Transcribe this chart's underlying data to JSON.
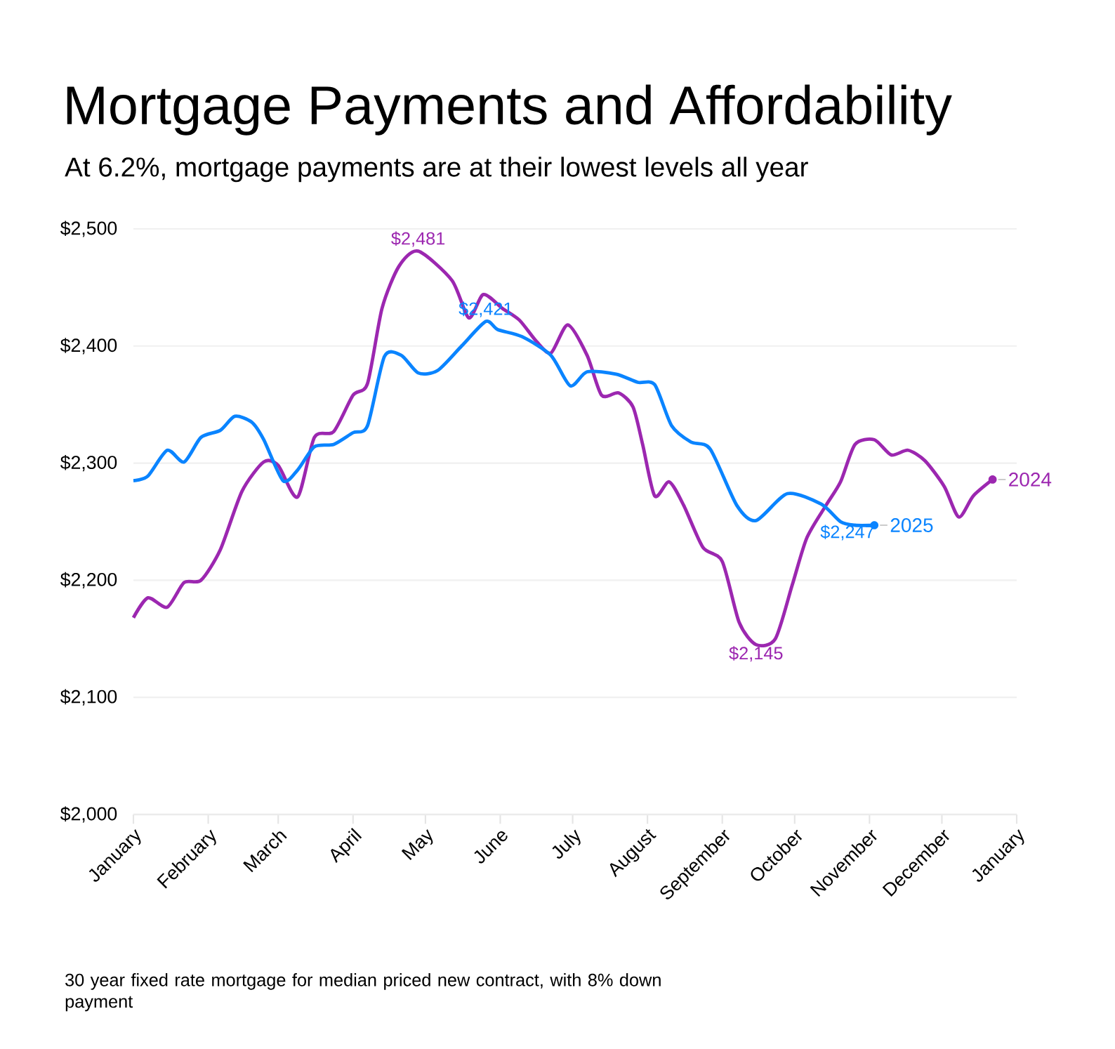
{
  "chart_data": {
    "type": "line",
    "title": "Mortgage Payments and Affordability",
    "subtitle": "At 6.2%, mortgage payments are at their lowest levels all year",
    "xlim": [
      "2024-01-01",
      "2025-01-01"
    ],
    "xticks": [
      {
        "value": "2024-01-01",
        "label": "January"
      },
      {
        "value": "2024-02-01",
        "label": "February"
      },
      {
        "value": "2024-03-01",
        "label": "March"
      },
      {
        "value": "2024-04-01",
        "label": "April"
      },
      {
        "value": "2024-05-01",
        "label": "May"
      },
      {
        "value": "2024-06-01",
        "label": "June"
      },
      {
        "value": "2024-07-01",
        "label": "July"
      },
      {
        "value": "2024-08-01",
        "label": "August"
      },
      {
        "value": "2024-09-01",
        "label": "September"
      },
      {
        "value": "2024-10-01",
        "label": "October"
      },
      {
        "value": "2024-11-01",
        "label": "November"
      },
      {
        "value": "2024-12-01",
        "label": "December"
      },
      {
        "value": "2025-01-01",
        "label": "January"
      }
    ],
    "ylim": [
      2000,
      2500
    ],
    "yticks": [
      {
        "value": 2000,
        "label": "$2,000"
      },
      {
        "value": 2100,
        "label": "$2,100"
      },
      {
        "value": 2200,
        "label": "$2,200"
      },
      {
        "value": 2300,
        "label": "$2,300"
      },
      {
        "value": 2400,
        "label": "$2,400"
      },
      {
        "value": 2500,
        "label": "$2,500"
      }
    ],
    "grid": "y",
    "legend": false,
    "series": [
      {
        "name": "2024",
        "color": "#9c27b0",
        "x": [
          "2024-01-01",
          "2024-01-07",
          "2024-01-15",
          "2024-01-22",
          "2024-01-29",
          "2024-02-06",
          "2024-02-15",
          "2024-02-24",
          "2024-03-01",
          "2024-03-09",
          "2024-03-16",
          "2024-03-24",
          "2024-04-01",
          "2024-04-07",
          "2024-04-13",
          "2024-04-20",
          "2024-04-28",
          "2024-05-12",
          "2024-05-19",
          "2024-05-25",
          "2024-06-02",
          "2024-06-09",
          "2024-06-16",
          "2024-06-22",
          "2024-06-29",
          "2024-07-07",
          "2024-07-13",
          "2024-07-20",
          "2024-07-26",
          "2024-07-30",
          "2024-08-04",
          "2024-08-10",
          "2024-08-16",
          "2024-08-24",
          "2024-09-01",
          "2024-09-08",
          "2024-09-15",
          "2024-09-23",
          "2024-09-30",
          "2024-10-06",
          "2024-10-14",
          "2024-10-20",
          "2024-10-26",
          "2024-11-03",
          "2024-11-10",
          "2024-11-17",
          "2024-11-24",
          "2024-12-02",
          "2024-12-08",
          "2024-12-14",
          "2024-12-22"
        ],
        "values": [
          2168,
          2185,
          2177,
          2198,
          2200,
          2226,
          2276,
          2301,
          2298,
          2271,
          2322,
          2327,
          2358,
          2368,
          2432,
          2468,
          2481,
          2456,
          2424,
          2444,
          2432,
          2422,
          2404,
          2394,
          2418,
          2392,
          2358,
          2360,
          2348,
          2316,
          2272,
          2284,
          2264,
          2228,
          2216,
          2164,
          2145,
          2150,
          2196,
          2236,
          2264,
          2284,
          2316,
          2320,
          2307,
          2311,
          2302,
          2280,
          2254,
          2272,
          2286
        ]
      },
      {
        "name": "2025",
        "color": "#0a84ff",
        "x": [
          "2024-01-01",
          "2024-01-07",
          "2024-01-15",
          "2024-01-22",
          "2024-01-29",
          "2024-02-06",
          "2024-02-12",
          "2024-02-19",
          "2024-02-24",
          "2024-03-03",
          "2024-03-09",
          "2024-03-16",
          "2024-03-24",
          "2024-04-01",
          "2024-04-07",
          "2024-04-14",
          "2024-04-21",
          "2024-04-28",
          "2024-05-06",
          "2024-05-16",
          "2024-05-26",
          "2024-05-31",
          "2024-06-10",
          "2024-06-22",
          "2024-06-30",
          "2024-07-07",
          "2024-07-19",
          "2024-07-28",
          "2024-08-04",
          "2024-08-11",
          "2024-08-19",
          "2024-08-27",
          "2024-09-07",
          "2024-09-15",
          "2024-09-28",
          "2024-10-12",
          "2024-10-20",
          "2024-10-26",
          "2024-11-03"
        ],
        "values": [
          2285,
          2289,
          2311,
          2301,
          2322,
          2328,
          2340,
          2335,
          2320,
          2285,
          2294,
          2314,
          2316,
          2326,
          2332,
          2391,
          2392,
          2377,
          2379,
          2400,
          2421,
          2414,
          2408,
          2392,
          2366,
          2378,
          2376,
          2369,
          2367,
          2332,
          2318,
          2312,
          2264,
          2251,
          2274,
          2265,
          2250,
          2247,
          2247
        ]
      }
    ],
    "annotations": [
      {
        "text": "$2,481",
        "x": "2024-04-28",
        "y": 2481
      },
      {
        "text": "$2,421",
        "x": "2024-05-26",
        "y": 2421
      },
      {
        "text": "$2,145",
        "x": "2024-09-15",
        "y": 2145
      },
      {
        "text": "$2,247",
        "x": "2024-11-03",
        "y": 2247
      },
      "30 year fixed rate mortgage for median priced new contract, with 8% down payment"
    ]
  }
}
